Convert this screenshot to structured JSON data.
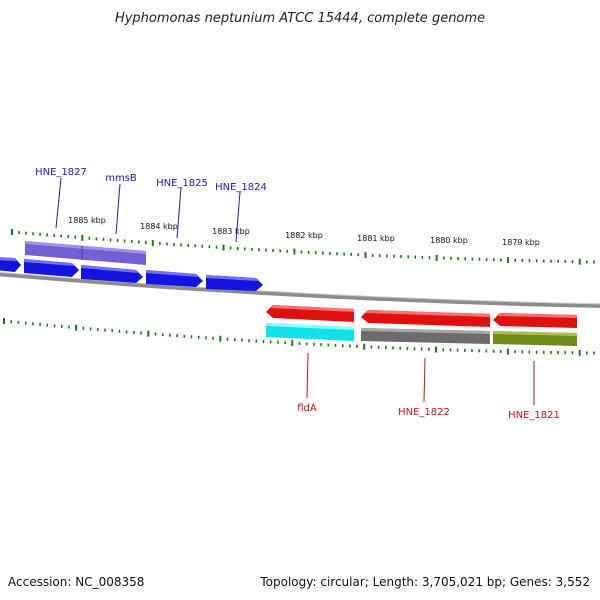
{
  "title": "Hyphomonas neptunium ATCC 15444, complete genome",
  "footer": {
    "accession": "Accession: NC_008358",
    "summary": "Topology: circular; Length: 3,705,021 bp; Genes: 3,552"
  },
  "colors": {
    "background": "#ffffff",
    "tick": "#1a7a1a",
    "backbone": "#8c8c8c",
    "blue_gene": "#1414e0",
    "blue_label": "#1a1ac8",
    "red_gene": "#e01010",
    "red_label": "#c41414",
    "purple_gene": "#7060d0",
    "cyan_gene": "#10e0e8",
    "gray_gene": "#6c6c6c",
    "olive_gene": "#6e8c1a"
  },
  "ruler": {
    "kbp_labels": [
      "1885 kbp",
      "1884 kbp",
      "1883 kbp",
      "1882 kbp",
      "1881 kbp",
      "1880 kbp",
      "1879 kbp"
    ]
  },
  "genes": {
    "top": [
      {
        "name": "HNE_1827",
        "color": "blue_label"
      },
      {
        "name": "mmsB",
        "color": "blue_label"
      },
      {
        "name": "HNE_1825",
        "color": "blue_label"
      },
      {
        "name": "HNE_1824",
        "color": "blue_label"
      }
    ],
    "bottom": [
      {
        "name": "fldA",
        "color": "red_label"
      },
      {
        "name": "HNE_1822",
        "color": "red_label"
      },
      {
        "name": "HNE_1821",
        "color": "red_label"
      }
    ]
  }
}
